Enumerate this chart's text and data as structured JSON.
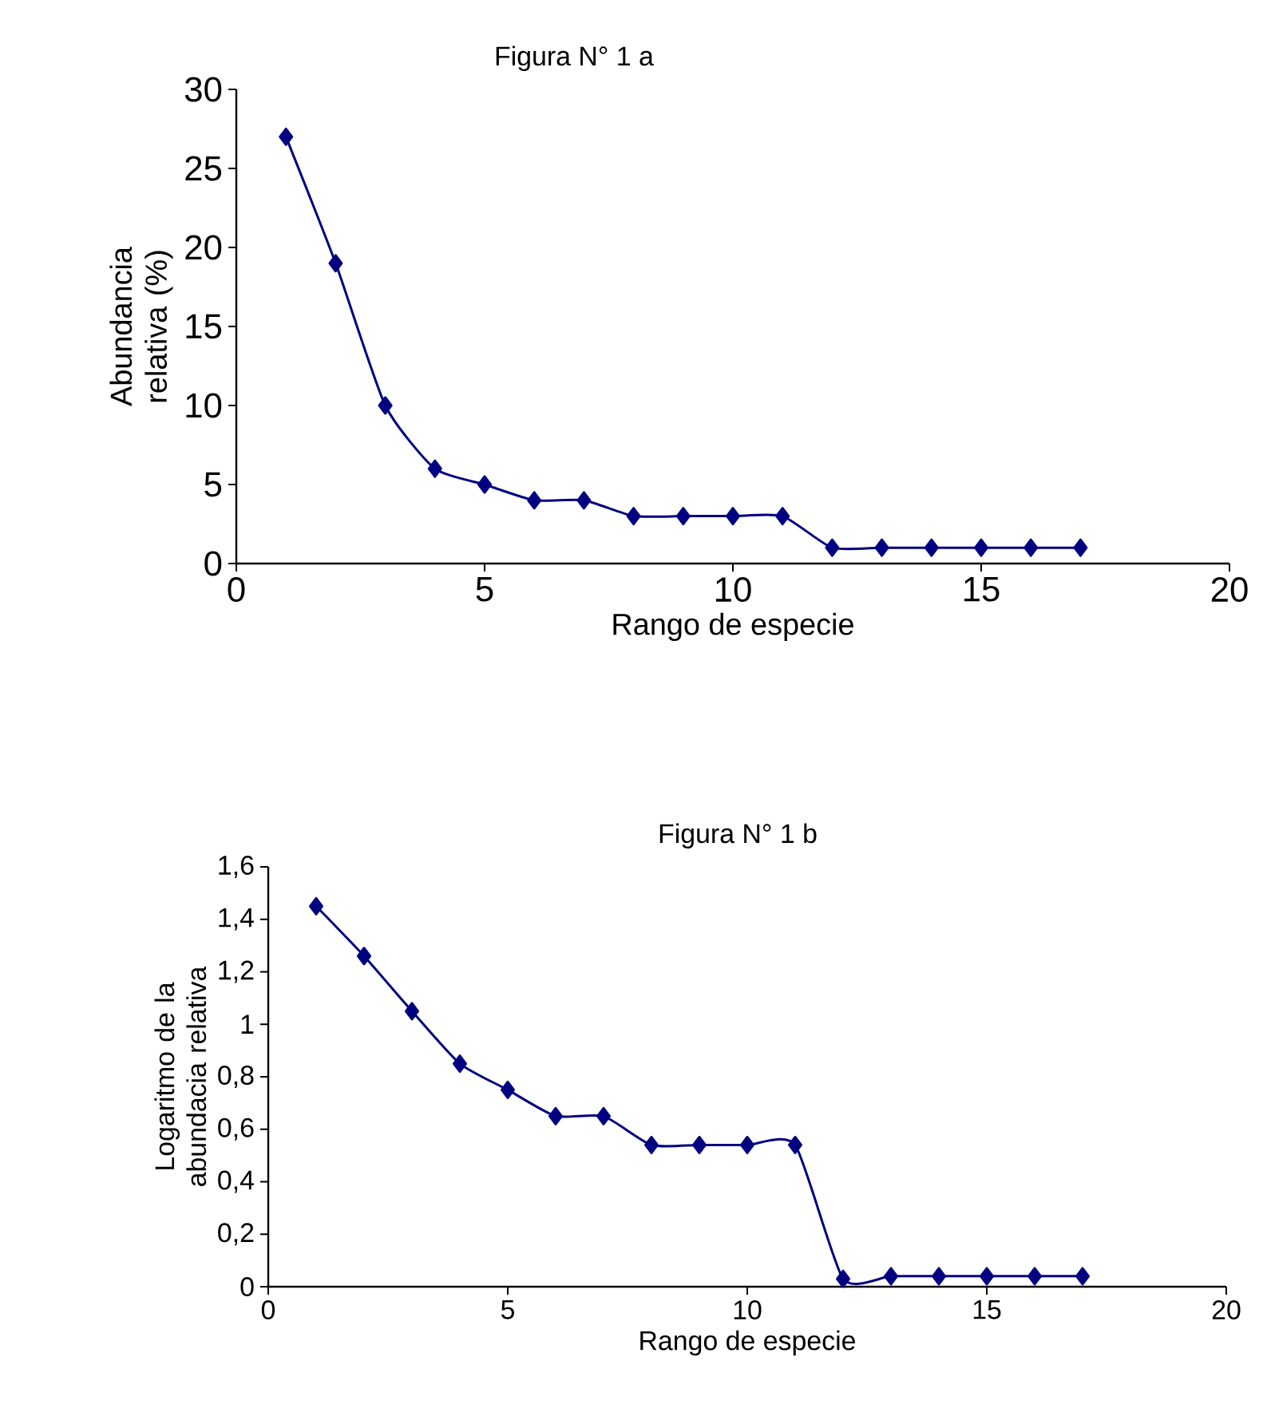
{
  "chart_data": [
    {
      "type": "line",
      "title": "Figura N° 1 a",
      "xlabel": "Rango de especie",
      "ylabel": "Abundancia relativa (%)",
      "x": [
        1,
        2,
        3,
        4,
        5,
        6,
        7,
        8,
        9,
        10,
        11,
        12,
        13,
        14,
        15,
        16,
        17
      ],
      "values": [
        27,
        19,
        10,
        6,
        5,
        4,
        4,
        3,
        3,
        3,
        3,
        1,
        1,
        1,
        1,
        1,
        1
      ],
      "color": "#000080",
      "marker": "diamond",
      "xlim": [
        0,
        20
      ],
      "ylim": [
        0,
        30
      ],
      "xticks": [
        0,
        5,
        10,
        15,
        20
      ],
      "yticks": [
        0,
        5,
        10,
        15,
        20,
        25,
        30
      ]
    },
    {
      "type": "line",
      "title": "Figura N° 1 b",
      "xlabel": "Rango de especie",
      "ylabel": "Logaritmo de la abundacia relativa",
      "x": [
        1,
        2,
        3,
        4,
        5,
        6,
        7,
        8,
        9,
        10,
        11,
        12,
        13,
        14,
        15,
        16,
        17
      ],
      "values": [
        1.45,
        1.26,
        1.05,
        0.85,
        0.75,
        0.65,
        0.65,
        0.54,
        0.54,
        0.54,
        0.54,
        0.03,
        0.04,
        0.04,
        0.04,
        0.04,
        0.04
      ],
      "color": "#000080",
      "marker": "diamond",
      "xlim": [
        0,
        20
      ],
      "ylim": [
        0,
        1.6
      ],
      "xticks": [
        0,
        5,
        10,
        15,
        20
      ],
      "yticks": [
        0,
        {
          "value": 0.2,
          "label": "0,2"
        },
        {
          "value": 0.4,
          "label": "0,4"
        },
        {
          "value": 0.6,
          "label": "0,6"
        },
        {
          "value": 0.8,
          "label": "0,8"
        },
        1,
        {
          "value": 1.2,
          "label": "1,2"
        },
        {
          "value": 1.4,
          "label": "1,4"
        },
        {
          "value": 1.6,
          "label": "1,6"
        }
      ]
    }
  ]
}
